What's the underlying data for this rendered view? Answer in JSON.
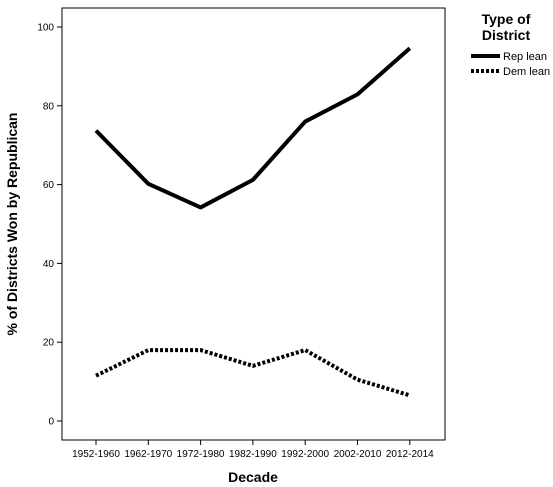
{
  "chart_data": {
    "type": "line",
    "categories": [
      "1952-1960",
      "1962-1970",
      "1972-1980",
      "1982-1990",
      "1992-2000",
      "2002-2010",
      "2012-2014"
    ],
    "series": [
      {
        "name": "Rep lean",
        "values": [
          73.7,
          60.2,
          54.2,
          61.2,
          76.0,
          82.9,
          94.6
        ],
        "color": "#000000",
        "dash": "solid"
      },
      {
        "name": "Dem lean",
        "values": [
          11.5,
          18.0,
          18.0,
          14.0,
          18.0,
          10.5,
          6.5
        ],
        "color": "#000000",
        "dash": "dotted"
      }
    ],
    "xlabel": "Decade",
    "ylabel": "% of Districts Won by Republican",
    "ylim": [
      0,
      100
    ],
    "yticks": [
      0,
      20,
      40,
      60,
      80,
      100
    ],
    "legend": {
      "title_line1": "Type of",
      "title_line2": "District",
      "placement": "right"
    },
    "grid": false
  }
}
